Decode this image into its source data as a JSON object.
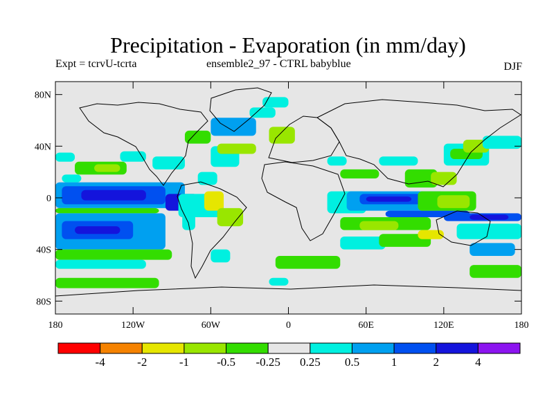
{
  "chart_data": {
    "type": "heatmap",
    "title": "Precipitation - Evaporation (in mm/day)",
    "subtitle_left": "Expt = tcrvU-tcrta",
    "subtitle_center": "ensemble2_97 - CTRL babyblue",
    "subtitle_right": "DJF",
    "x_range": [
      -180,
      180
    ],
    "y_range": [
      -90,
      90
    ],
    "x_ticks": [
      {
        "value": -180,
        "label": "180"
      },
      {
        "value": -120,
        "label": "120W"
      },
      {
        "value": -60,
        "label": "60W"
      },
      {
        "value": 0,
        "label": "0"
      },
      {
        "value": 60,
        "label": "60E"
      },
      {
        "value": 120,
        "label": "120E"
      },
      {
        "value": 180,
        "label": "180"
      }
    ],
    "y_ticks": [
      {
        "value": 80,
        "label": "80N"
      },
      {
        "value": 40,
        "label": "40N"
      },
      {
        "value": 0,
        "label": "0"
      },
      {
        "value": -40,
        "label": "40S"
      },
      {
        "value": -80,
        "label": "80S"
      }
    ],
    "colorbar": {
      "colors": [
        "#ff0000",
        "#f58200",
        "#e6e600",
        "#99e600",
        "#33dd00",
        "#e6e6e6",
        "#00f0e0",
        "#00a0f0",
        "#0050f0",
        "#1414dc",
        "#8c14f0"
      ],
      "labels": [
        "-4",
        "-2",
        "-1",
        "-0.5",
        "-0.25",
        "0.25",
        "0.5",
        "1",
        "2",
        "4"
      ]
    },
    "cells": [
      {
        "lon": [
          -180,
          -165
        ],
        "lat": [
          28,
          35
        ],
        "bin": 6
      },
      {
        "lon": [
          -175,
          -160
        ],
        "lat": [
          12,
          18
        ],
        "bin": 6
      },
      {
        "lon": [
          -165,
          -125
        ],
        "lat": [
          18,
          28
        ],
        "bin": 4
      },
      {
        "lon": [
          -150,
          -130
        ],
        "lat": [
          20,
          26
        ],
        "bin": 3
      },
      {
        "lon": [
          -130,
          -110
        ],
        "lat": [
          28,
          36
        ],
        "bin": 6
      },
      {
        "lon": [
          -105,
          -80
        ],
        "lat": [
          22,
          32
        ],
        "bin": 6
      },
      {
        "lon": [
          -180,
          -80
        ],
        "lat": [
          -8,
          12
        ],
        "bin": 7
      },
      {
        "lon": [
          -175,
          -95
        ],
        "lat": [
          -5,
          9
        ],
        "bin": 8
      },
      {
        "lon": [
          -160,
          -110
        ],
        "lat": [
          -2,
          6
        ],
        "bin": 9
      },
      {
        "lon": [
          -95,
          -70
        ],
        "lat": [
          -10,
          3
        ],
        "bin": 9
      },
      {
        "lon": [
          -180,
          -100
        ],
        "lat": [
          -12,
          -8
        ],
        "bin": 4
      },
      {
        "lon": [
          -180,
          -95
        ],
        "lat": [
          -40,
          -12
        ],
        "bin": 7
      },
      {
        "lon": [
          -175,
          -120
        ],
        "lat": [
          -32,
          -18
        ],
        "bin": 8
      },
      {
        "lon": [
          -165,
          -130
        ],
        "lat": [
          -28,
          -22
        ],
        "bin": 9
      },
      {
        "lon": [
          -180,
          -90
        ],
        "lat": [
          -48,
          -40
        ],
        "bin": 4
      },
      {
        "lon": [
          -180,
          -110
        ],
        "lat": [
          -55,
          -48
        ],
        "bin": 6
      },
      {
        "lon": [
          -85,
          -50
        ],
        "lat": [
          -15,
          3
        ],
        "bin": 6
      },
      {
        "lon": [
          -82,
          -72
        ],
        "lat": [
          -25,
          -5
        ],
        "bin": 6
      },
      {
        "lon": [
          -65,
          -50
        ],
        "lat": [
          -10,
          5
        ],
        "bin": 2
      },
      {
        "lon": [
          -55,
          -35
        ],
        "lat": [
          -22,
          -8
        ],
        "bin": 3
      },
      {
        "lon": [
          -70,
          -55
        ],
        "lat": [
          10,
          20
        ],
        "bin": 6
      },
      {
        "lon": [
          -60,
          -38
        ],
        "lat": [
          24,
          40
        ],
        "bin": 6
      },
      {
        "lon": [
          -55,
          -25
        ],
        "lat": [
          34,
          42
        ],
        "bin": 3
      },
      {
        "lon": [
          -80,
          -60
        ],
        "lat": [
          42,
          52
        ],
        "bin": 4
      },
      {
        "lon": [
          -60,
          -25
        ],
        "lat": [
          48,
          62
        ],
        "bin": 7
      },
      {
        "lon": [
          -30,
          -10
        ],
        "lat": [
          62,
          70
        ],
        "bin": 6
      },
      {
        "lon": [
          -20,
          0
        ],
        "lat": [
          70,
          78
        ],
        "bin": 6
      },
      {
        "lon": [
          -15,
          5
        ],
        "lat": [
          42,
          55
        ],
        "bin": 3
      },
      {
        "lon": [
          -60,
          -45
        ],
        "lat": [
          -50,
          -40
        ],
        "bin": 6
      },
      {
        "lon": [
          -180,
          -100
        ],
        "lat": [
          -70,
          -62
        ],
        "bin": 4
      },
      {
        "lon": [
          -15,
          0
        ],
        "lat": [
          -68,
          -62
        ],
        "bin": 6
      },
      {
        "lon": [
          -10,
          40
        ],
        "lat": [
          -55,
          -45
        ],
        "bin": 4
      },
      {
        "lon": [
          30,
          45
        ],
        "lat": [
          25,
          32
        ],
        "bin": 6
      },
      {
        "lon": [
          40,
          70
        ],
        "lat": [
          15,
          22
        ],
        "bin": 4
      },
      {
        "lon": [
          30,
          60
        ],
        "lat": [
          -12,
          5
        ],
        "bin": 6
      },
      {
        "lon": [
          45,
          120
        ],
        "lat": [
          -10,
          5
        ],
        "bin": 7
      },
      {
        "lon": [
          55,
          110
        ],
        "lat": [
          -5,
          3
        ],
        "bin": 8
      },
      {
        "lon": [
          60,
          95
        ],
        "lat": [
          -3,
          1
        ],
        "bin": 9
      },
      {
        "lon": [
          75,
          140
        ],
        "lat": [
          -15,
          -10
        ],
        "bin": 8
      },
      {
        "lon": [
          120,
          180
        ],
        "lat": [
          -18,
          -12
        ],
        "bin": 8
      },
      {
        "lon": [
          140,
          170
        ],
        "lat": [
          -17,
          -13
        ],
        "bin": 9
      },
      {
        "lon": [
          40,
          110
        ],
        "lat": [
          -25,
          -15
        ],
        "bin": 4
      },
      {
        "lon": [
          55,
          85
        ],
        "lat": [
          -25,
          -18
        ],
        "bin": 3
      },
      {
        "lon": [
          40,
          75
        ],
        "lat": [
          -40,
          -30
        ],
        "bin": 6
      },
      {
        "lon": [
          70,
          110
        ],
        "lat": [
          -38,
          -28
        ],
        "bin": 4
      },
      {
        "lon": [
          100,
          120
        ],
        "lat": [
          -32,
          -25
        ],
        "bin": 2
      },
      {
        "lon": [
          130,
          180
        ],
        "lat": [
          -32,
          -20
        ],
        "bin": 6
      },
      {
        "lon": [
          140,
          175
        ],
        "lat": [
          -45,
          -35
        ],
        "bin": 7
      },
      {
        "lon": [
          100,
          145
        ],
        "lat": [
          -10,
          5
        ],
        "bin": 4
      },
      {
        "lon": [
          115,
          140
        ],
        "lat": [
          -8,
          2
        ],
        "bin": 3
      },
      {
        "lon": [
          90,
          115
        ],
        "lat": [
          8,
          22
        ],
        "bin": 4
      },
      {
        "lon": [
          110,
          130
        ],
        "lat": [
          10,
          20
        ],
        "bin": 3
      },
      {
        "lon": [
          120,
          155
        ],
        "lat": [
          25,
          42
        ],
        "bin": 6
      },
      {
        "lon": [
          125,
          150
        ],
        "lat": [
          30,
          38
        ],
        "bin": 4
      },
      {
        "lon": [
          135,
          155
        ],
        "lat": [
          35,
          45
        ],
        "bin": 3
      },
      {
        "lon": [
          150,
          180
        ],
        "lat": [
          38,
          48
        ],
        "bin": 6
      },
      {
        "lon": [
          70,
          100
        ],
        "lat": [
          25,
          32
        ],
        "bin": 6
      },
      {
        "lon": [
          140,
          180
        ],
        "lat": [
          -62,
          -52
        ],
        "bin": 4
      }
    ]
  }
}
